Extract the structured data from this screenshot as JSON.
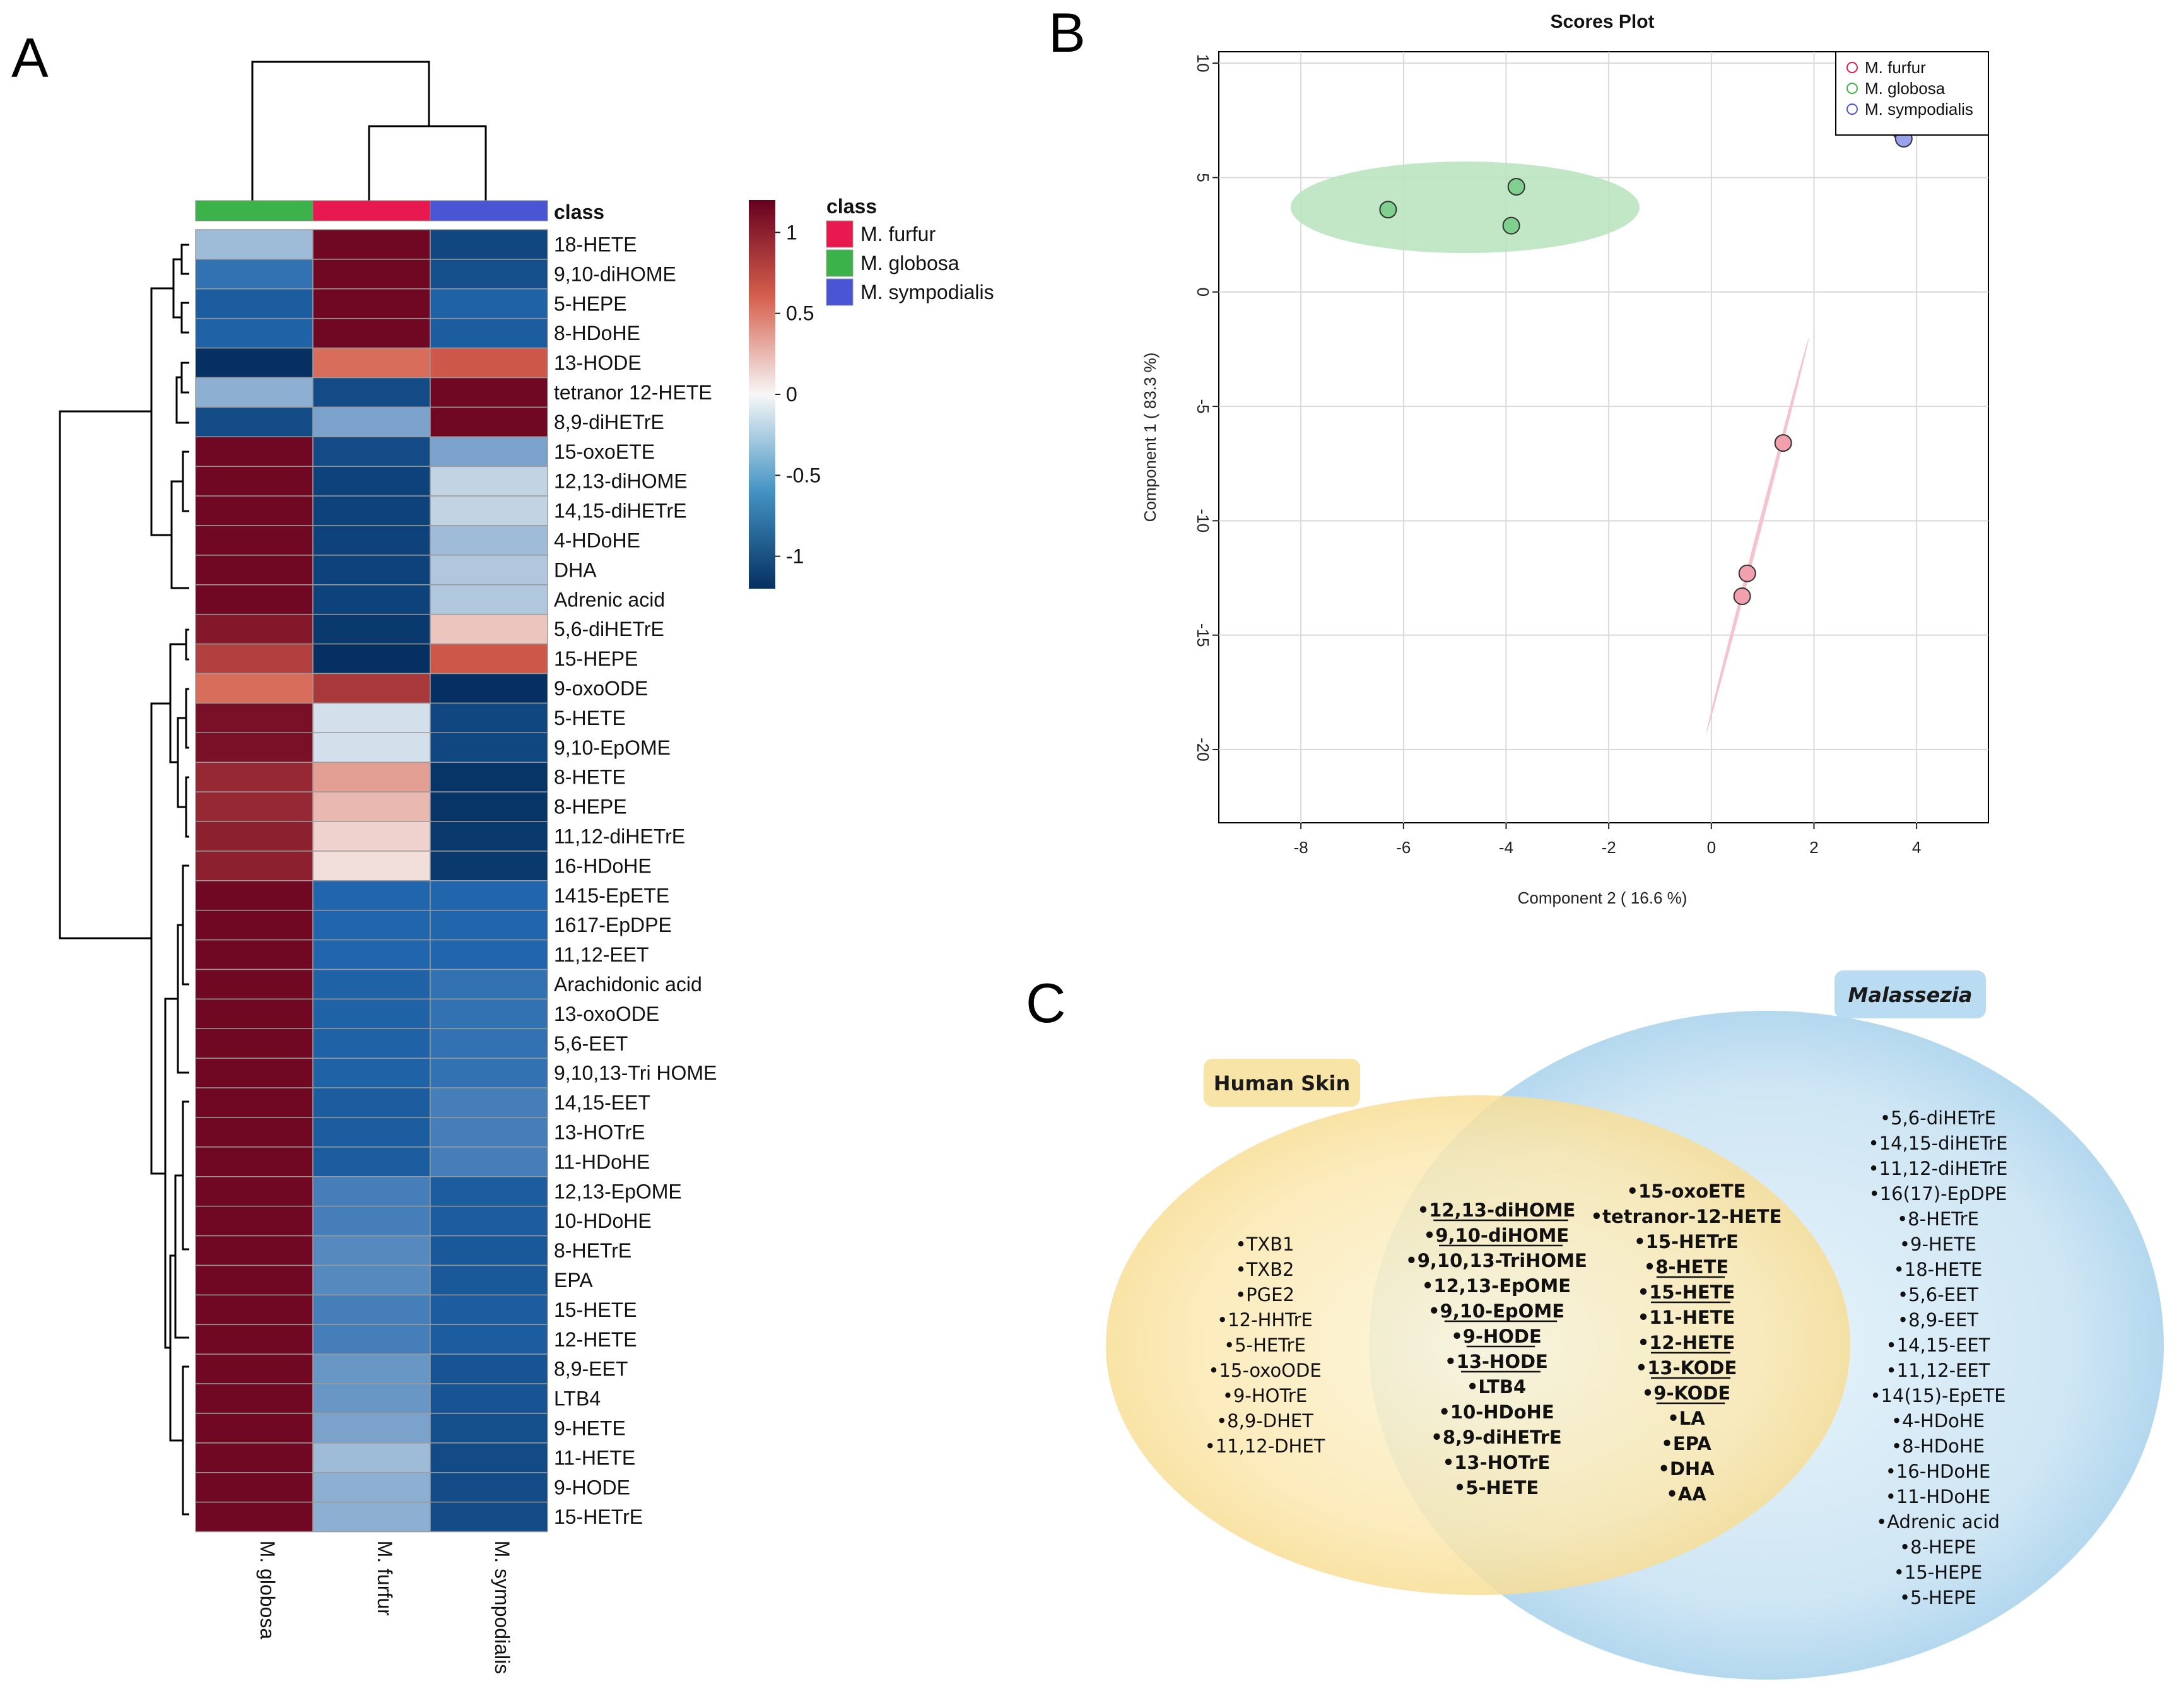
{
  "panels": {
    "a": "A",
    "b": "B",
    "c": "C"
  },
  "chart_data": [
    {
      "type": "heatmap",
      "panel": "A",
      "columns": [
        "M. globosa",
        "M. furfur",
        "M. sympodialis"
      ],
      "column_classes": [
        "M. globosa",
        "M. furfur",
        "M. sympodialis"
      ],
      "class_legend_title": "class",
      "class_legend": [
        {
          "name": "M. furfur",
          "color": "#e8194f"
        },
        {
          "name": "M. globosa",
          "color": "#3cb34a"
        },
        {
          "name": "M. sympodialis",
          "color": "#4a55d6"
        }
      ],
      "colorbar": {
        "ticks": [
          1,
          0.5,
          0,
          -0.5,
          -1
        ],
        "tick_labels": [
          "1",
          "0.5",
          "0",
          "-0.5",
          "-1"
        ],
        "range": [
          -1.2,
          1.2
        ]
      },
      "rows": [
        "18-HETE",
        "9,10-diHOME",
        "5-HEPE",
        "8-HDoHE",
        "13-HODE",
        "tetranor 12-HETE",
        "8,9-diHETrE",
        "15-oxoETE",
        "12,13-diHOME",
        "14,15-diHETrE",
        "4-HDoHE",
        "DHA",
        "Adrenic acid",
        "5,6-diHETrE",
        "15-HEPE",
        "9-oxoODE",
        "5-HETE",
        "9,10-EpOME",
        "8-HETE",
        "8-HEPE",
        "11,12-diHETrE",
        "16-HDoHE",
        "1415-EpETE",
        "1617-EpDPE",
        "11,12-EET",
        "Arachidonic acid",
        "13-oxoODE",
        "5,6-EET",
        "9,10,13-Tri HOME",
        "14,15-EET",
        "13-HOTrE",
        "11-HDoHE",
        "12,13-EpOME",
        "10-HDoHE",
        "8-HETrE",
        "EPA",
        "15-HETE",
        "12-HETE",
        "8,9-EET",
        "LTB4",
        "9-HETE",
        "11-HETE",
        "9-HODE",
        "15-HETrE"
      ],
      "values": [
        [
          -0.25,
          1.15,
          -0.95
        ],
        [
          -0.55,
          1.15,
          -0.85
        ],
        [
          -0.7,
          1.15,
          -0.65
        ],
        [
          -0.65,
          1.15,
          -0.7
        ],
        [
          -1.2,
          0.55,
          0.65
        ],
        [
          -0.3,
          -0.9,
          1.15
        ],
        [
          -0.9,
          -0.35,
          1.15
        ],
        [
          1.15,
          -0.9,
          -0.35
        ],
        [
          1.15,
          -1.0,
          -0.15
        ],
        [
          1.15,
          -1.0,
          -0.15
        ],
        [
          1.15,
          -1.0,
          -0.25
        ],
        [
          1.15,
          -1.0,
          -0.2
        ],
        [
          1.15,
          -1.0,
          -0.2
        ],
        [
          1.05,
          -1.1,
          0.2
        ],
        [
          0.8,
          -1.2,
          0.65
        ],
        [
          0.55,
          0.85,
          -1.2
        ],
        [
          1.1,
          -0.1,
          -0.95
        ],
        [
          1.1,
          -0.1,
          -0.95
        ],
        [
          0.95,
          0.35,
          -1.15
        ],
        [
          0.95,
          0.25,
          -1.15
        ],
        [
          1.0,
          0.15,
          -1.1
        ],
        [
          1.0,
          0.1,
          -1.1
        ],
        [
          1.15,
          -0.6,
          -0.6
        ],
        [
          1.15,
          -0.6,
          -0.6
        ],
        [
          1.15,
          -0.6,
          -0.6
        ],
        [
          1.15,
          -0.65,
          -0.55
        ],
        [
          1.15,
          -0.65,
          -0.55
        ],
        [
          1.15,
          -0.65,
          -0.55
        ],
        [
          1.15,
          -0.65,
          -0.55
        ],
        [
          1.15,
          -0.7,
          -0.5
        ],
        [
          1.15,
          -0.7,
          -0.5
        ],
        [
          1.15,
          -0.7,
          -0.5
        ],
        [
          1.15,
          -0.5,
          -0.7
        ],
        [
          1.15,
          -0.5,
          -0.7
        ],
        [
          1.15,
          -0.45,
          -0.75
        ],
        [
          1.15,
          -0.45,
          -0.75
        ],
        [
          1.15,
          -0.5,
          -0.7
        ],
        [
          1.15,
          -0.5,
          -0.7
        ],
        [
          1.15,
          -0.4,
          -0.8
        ],
        [
          1.15,
          -0.4,
          -0.8
        ],
        [
          1.15,
          -0.35,
          -0.85
        ],
        [
          1.15,
          -0.25,
          -0.9
        ],
        [
          1.15,
          -0.3,
          -0.9
        ],
        [
          1.15,
          -0.3,
          -0.9
        ]
      ]
    },
    {
      "type": "scatter",
      "panel": "B",
      "title": "Scores Plot",
      "xlabel": "Component 2 ( 16.6 %)",
      "ylabel": "Component 1 ( 83.3 %)",
      "xlim": [
        -9.6,
        5.4
      ],
      "ylim": [
        -23.2,
        10.5
      ],
      "xticks": [
        -8,
        -6,
        -4,
        -2,
        0,
        2,
        4
      ],
      "yticks": [
        10,
        5,
        0,
        -5,
        -10,
        -15,
        -20
      ],
      "xtick_labels": [
        "-8",
        "-6",
        "-4",
        "-2",
        "0",
        "2",
        "4"
      ],
      "ytick_labels": [
        "10",
        "5",
        "0",
        "-5",
        "-10",
        "-15",
        "-20"
      ],
      "legend": [
        "M. furfur",
        "M. globosa",
        "M. sympodialis"
      ],
      "series": [
        {
          "name": "M. furfur",
          "color": "#f2a0ae",
          "stroke": "#e8194f",
          "x": [
            1.4,
            0.7,
            0.6
          ],
          "y": [
            -6.6,
            -12.3,
            -13.3
          ]
        },
        {
          "name": "M. globosa",
          "color": "#7fd08e",
          "stroke": "#3cb34a",
          "x": [
            -6.3,
            -3.9,
            -3.8
          ],
          "y": [
            3.6,
            2.9,
            4.6
          ]
        },
        {
          "name": "M. sympodialis",
          "color": "#9aa2ee",
          "stroke": "#4a55d6",
          "x": [
            3.7,
            3.7,
            3.75
          ],
          "y": [
            7.2,
            7.0,
            6.7
          ]
        }
      ],
      "ellipses": [
        {
          "name": "M. globosa",
          "color": "#b6e3bd",
          "cx": -4.8,
          "cy": 3.7,
          "rx": 3.4,
          "ry": 2.0,
          "angle": 0
        },
        {
          "name": "M. furfur",
          "color": "#f5c3cd",
          "x1": -0.1,
          "y1": -19.3,
          "x2": 1.9,
          "y2": -2.0
        }
      ]
    }
  ],
  "venn": {
    "human_label": "Human Skin",
    "malassezia_label": "Malassezia",
    "human_only": [
      "•TXB1",
      "•TXB2",
      "•PGE2",
      "•12-HHTrE",
      "•5-HETrE",
      "•15-oxoODE",
      "•9-HOTrE",
      "•8,9-DHET",
      "•11,12-DHET"
    ],
    "shared_col1": [
      "•12,13-diHOME",
      "•9,10-diHOME",
      "•9,10,13-TriHOME",
      "•12,13-EpOME",
      "•9,10-EpOME",
      "•9-HODE",
      "•13-HODE",
      "•LTB4",
      "•10-HDoHE",
      "•8,9-diHETrE",
      "•13-HOTrE",
      "•5-HETE"
    ],
    "shared_col1_underlined": [
      true,
      true,
      false,
      false,
      true,
      true,
      true,
      false,
      false,
      false,
      false,
      false
    ],
    "shared_col2": [
      "•15-oxoETE",
      "•tetranor-12-HETE",
      "•15-HETrE",
      "•8-HETE",
      "•15-HETE",
      "•11-HETE",
      "•12-HETE",
      "•13-KODE",
      "•9-KODE",
      "•LA",
      "•EPA",
      "•DHA",
      "•AA"
    ],
    "shared_col2_underlined": [
      false,
      false,
      false,
      true,
      true,
      false,
      true,
      true,
      true,
      false,
      false,
      false,
      false
    ],
    "malassezia_only": [
      "•5,6-diHETrE",
      "•14,15-diHETrE",
      "•11,12-diHETrE",
      "•16(17)-EpDPE",
      "•8-HETrE",
      "•9-HETE",
      "•18-HETE",
      "•5,6-EET",
      "•8,9-EET",
      "•14,15-EET",
      "•11,12-EET",
      "•14(15)-EpETE",
      "•4-HDoHE",
      "•8-HDoHE",
      "•16-HDoHE",
      "•11-HDoHE",
      "•Adrenic acid",
      "•8-HEPE",
      "•15-HEPE",
      "•5-HEPE"
    ]
  }
}
